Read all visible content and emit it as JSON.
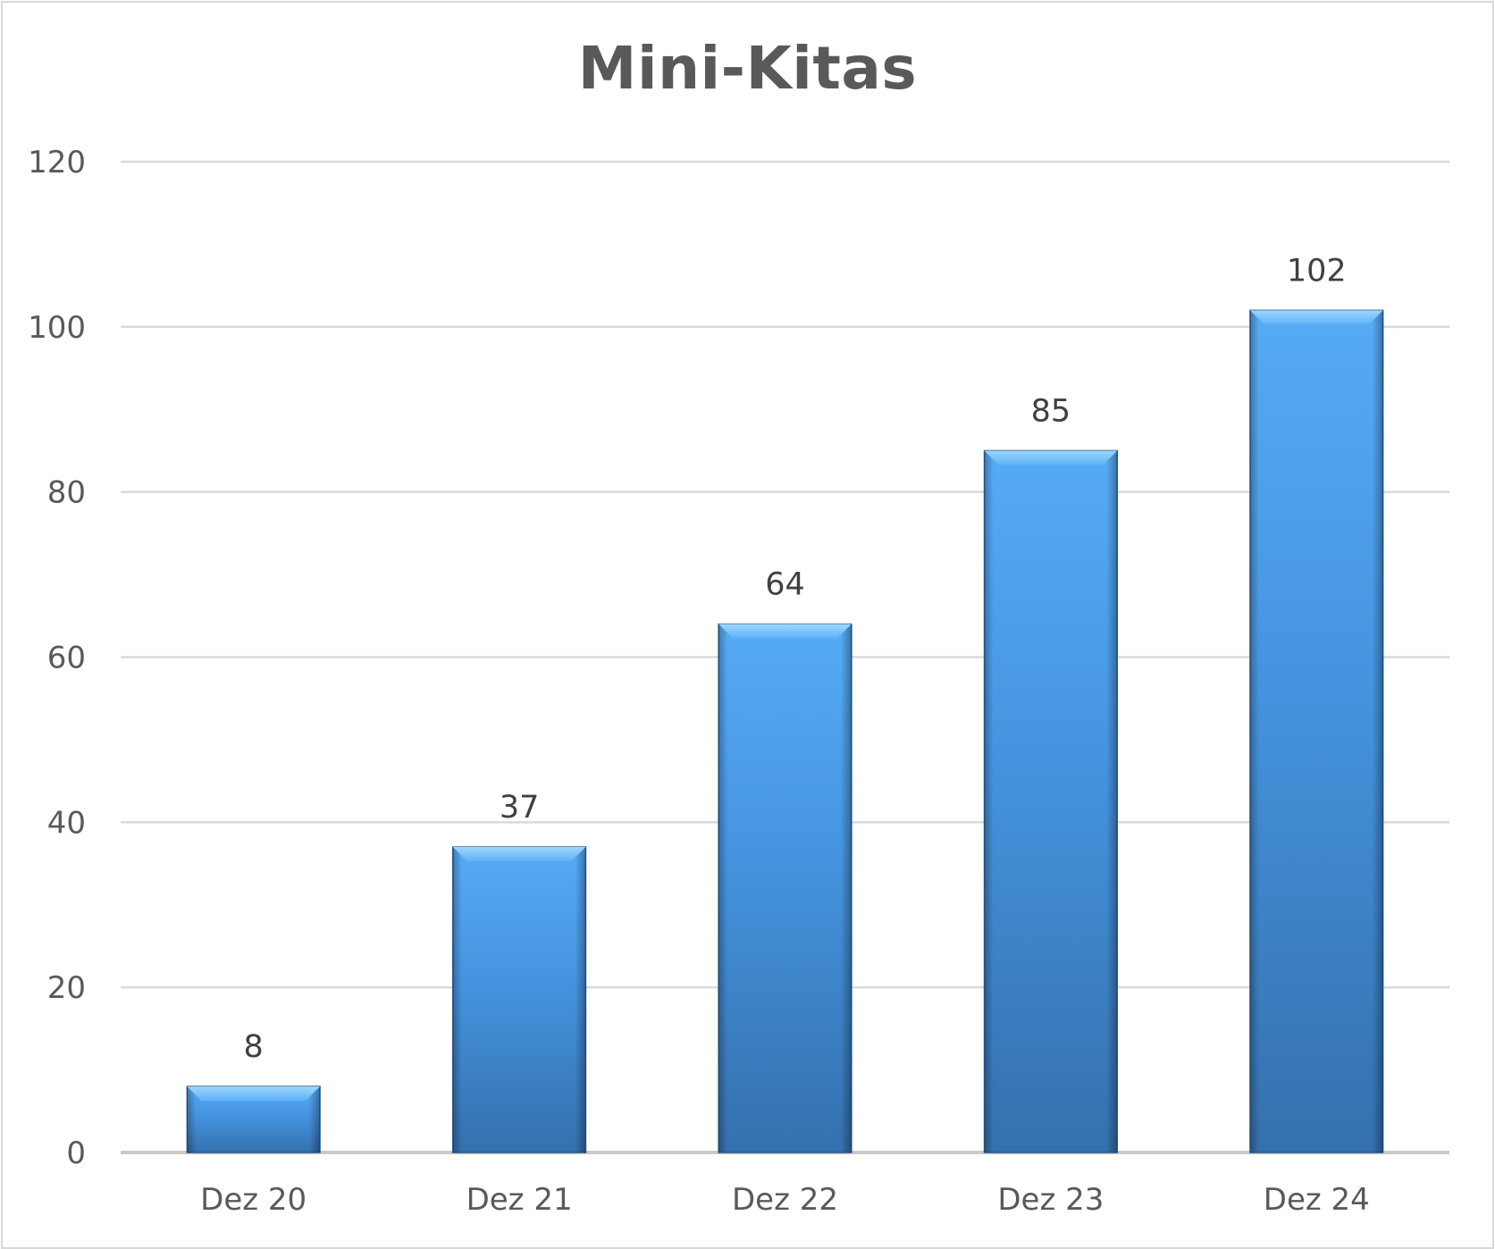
{
  "chart_data": {
    "type": "bar",
    "title": "Mini-Kitas",
    "xlabel": "",
    "ylabel": "",
    "categories": [
      "Dez 20",
      "Dez 21",
      "Dez 22",
      "Dez 23",
      "Dez 24"
    ],
    "values": [
      8,
      37,
      64,
      85,
      102
    ],
    "data_labels": [
      "8",
      "37",
      "64",
      "85",
      "102"
    ],
    "ylim": [
      0,
      120
    ],
    "yticks": [
      0,
      20,
      40,
      60,
      80,
      100,
      120
    ],
    "ytick_labels": [
      "0",
      "20",
      "40",
      "60",
      "80",
      "100",
      "120"
    ],
    "grid": true,
    "legend": "none",
    "colors": {
      "bar_top": "#56abf5",
      "bar_mid": "#4593de",
      "bar_bottom": "#3470ad",
      "bar_edge": "#2a5d91",
      "gridline": "#d9d9d9",
      "axis_text": "#595959",
      "label_text": "#404040"
    }
  }
}
